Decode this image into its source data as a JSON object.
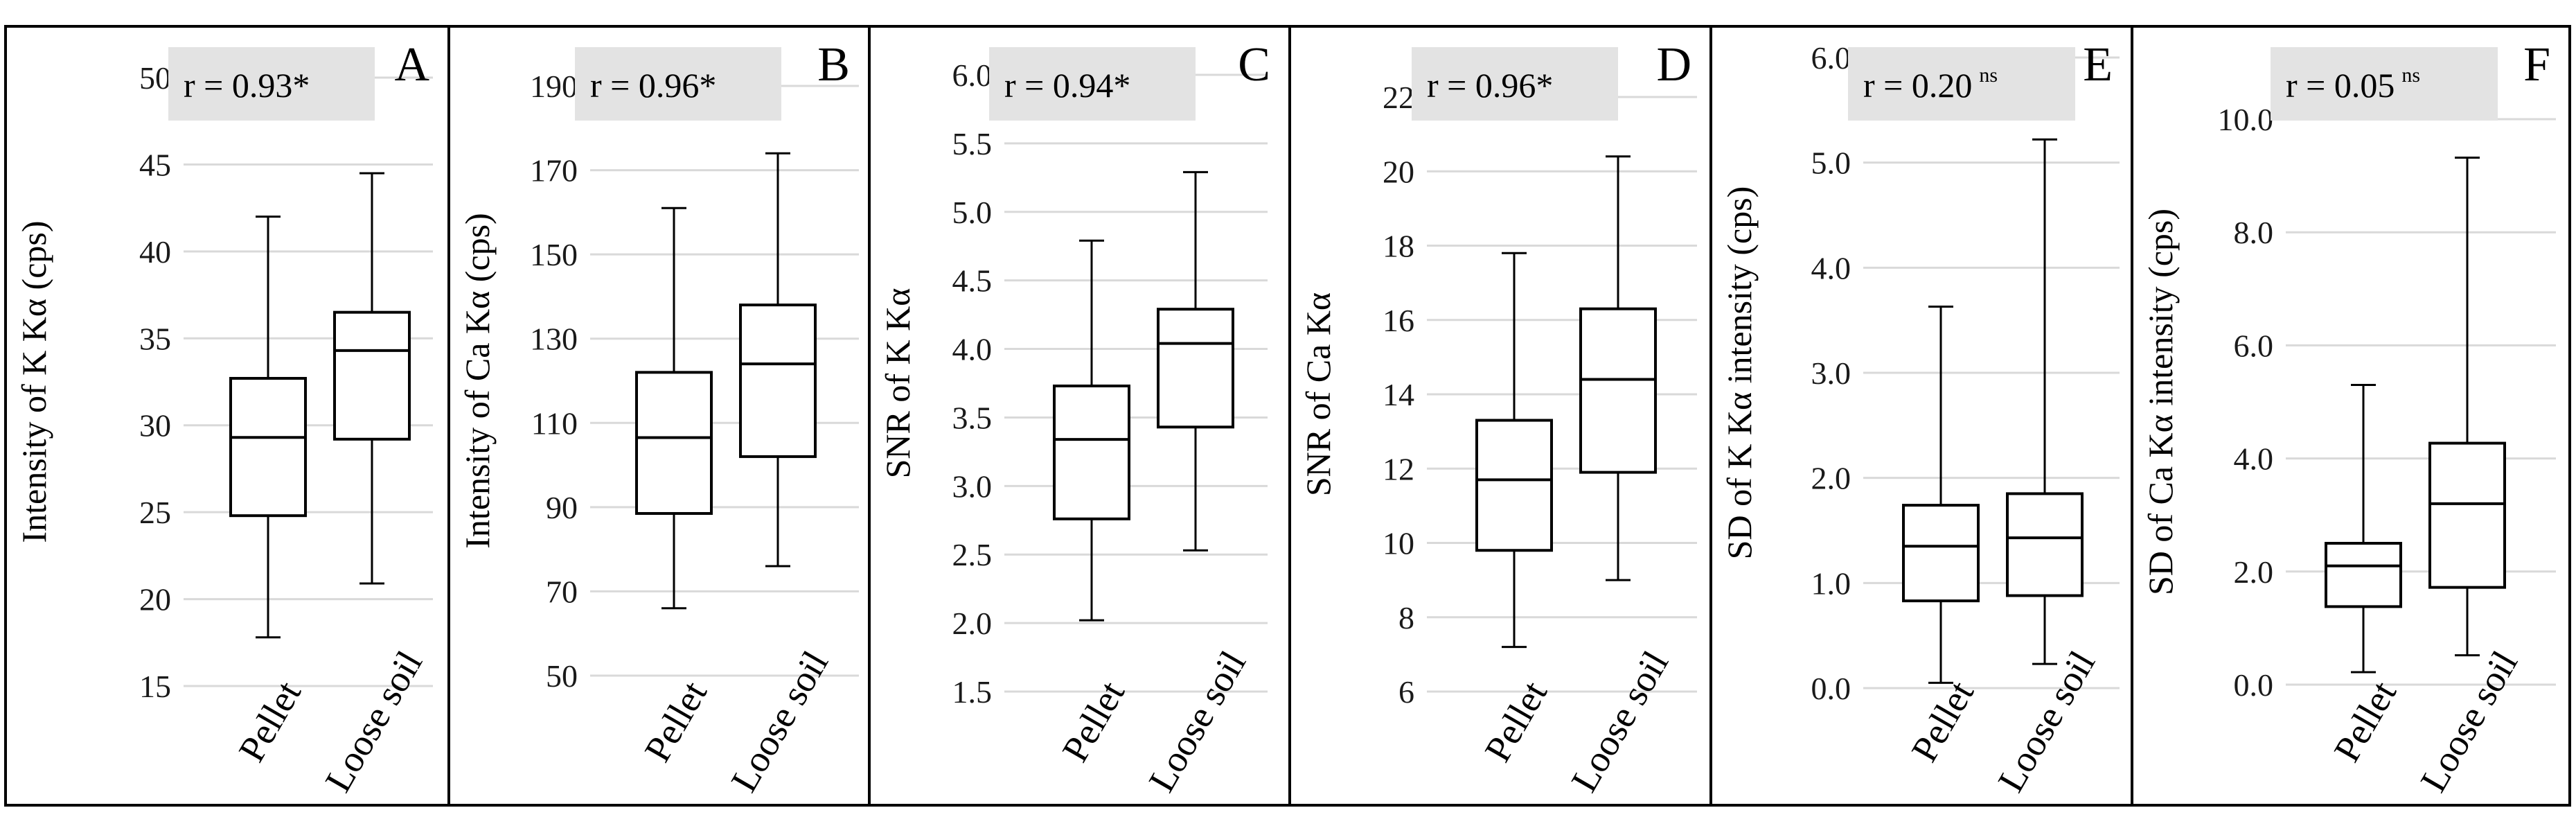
{
  "chart_data": [
    {
      "type": "boxplot",
      "panel_label": "A",
      "stat_label": "r = 0.93*",
      "ylabel": "Intensity of K Kα (cps)",
      "ylim": [
        15,
        50
      ],
      "yticks": [
        15,
        20,
        25,
        30,
        35,
        40,
        45,
        50
      ],
      "ytick_labels": [
        "15",
        "20",
        "25",
        "30",
        "35",
        "40",
        "45",
        "50"
      ],
      "categories": [
        "Pellet",
        "Loose soil"
      ],
      "boxes": [
        {
          "min": 17.8,
          "q1": 24.8,
          "median": 29.3,
          "q3": 32.7,
          "max": 42.0
        },
        {
          "min": 20.9,
          "q1": 29.2,
          "median": 34.3,
          "q3": 36.5,
          "max": 44.5
        }
      ]
    },
    {
      "type": "boxplot",
      "panel_label": "B",
      "stat_label": "r = 0.96*",
      "ylabel": "Intensity of Ca Kα (cps)",
      "ylim": [
        50,
        190
      ],
      "yticks": [
        50,
        70,
        90,
        110,
        130,
        150,
        170,
        190
      ],
      "ytick_labels": [
        "50",
        "70",
        "90",
        "110",
        "130",
        "150",
        "170",
        "190"
      ],
      "categories": [
        "Pellet",
        "Loose soil"
      ],
      "boxes": [
        {
          "min": 66,
          "q1": 88.5,
          "median": 106.5,
          "q3": 122,
          "max": 161
        },
        {
          "min": 76,
          "q1": 102,
          "median": 124,
          "q3": 138,
          "max": 174
        }
      ]
    },
    {
      "type": "boxplot",
      "panel_label": "C",
      "stat_label": "r = 0.94*",
      "ylabel": "SNR of K Kα",
      "ylim": [
        1.5,
        6.0
      ],
      "yticks": [
        1.5,
        2.0,
        2.5,
        3.0,
        3.5,
        4.0,
        4.5,
        5.0,
        5.5,
        6.0
      ],
      "ytick_labels": [
        "1.5",
        "2.0",
        "2.5",
        "3.0",
        "3.5",
        "4.0",
        "4.5",
        "5.0",
        "5.5",
        "6.0"
      ],
      "categories": [
        "Pellet",
        "Loose soil"
      ],
      "boxes": [
        {
          "min": 2.02,
          "q1": 2.76,
          "median": 3.34,
          "q3": 3.73,
          "max": 4.79
        },
        {
          "min": 2.53,
          "q1": 3.43,
          "median": 4.04,
          "q3": 4.29,
          "max": 5.29
        }
      ]
    },
    {
      "type": "boxplot",
      "panel_label": "D",
      "stat_label": "r = 0.96*",
      "ylabel": "SNR of Ca Kα",
      "ylim": [
        6,
        22
      ],
      "yticks": [
        6,
        8,
        10,
        12,
        14,
        16,
        18,
        20,
        22
      ],
      "ytick_labels": [
        "6",
        "8",
        "10",
        "12",
        "14",
        "16",
        "18",
        "20",
        "22"
      ],
      "categories": [
        "Pellet",
        "Loose soil"
      ],
      "boxes": [
        {
          "min": 7.2,
          "q1": 9.8,
          "median": 11.7,
          "q3": 13.3,
          "max": 17.8
        },
        {
          "min": 9.0,
          "q1": 11.9,
          "median": 14.4,
          "q3": 16.3,
          "max": 20.4
        }
      ]
    },
    {
      "type": "boxplot",
      "panel_label": "E",
      "stat_label": "r = 0.20",
      "stat_superscript": "ns",
      "ylabel": "SD of K Kα intensity (cps)",
      "ylim": [
        0,
        6
      ],
      "yticks": [
        0,
        1,
        2,
        3,
        4,
        5,
        6
      ],
      "ytick_labels": [
        "0.0",
        "1.0",
        "2.0",
        "3.0",
        "4.0",
        "5.0",
        "6.0"
      ],
      "categories": [
        "Pellet",
        "Loose soil"
      ],
      "boxes": [
        {
          "min": 0.05,
          "q1": 0.83,
          "median": 1.35,
          "q3": 1.74,
          "max": 3.63
        },
        {
          "min": 0.23,
          "q1": 0.88,
          "median": 1.43,
          "q3": 1.85,
          "max": 5.22
        }
      ]
    },
    {
      "type": "boxplot",
      "panel_label": "F",
      "stat_label": "r = 0.05",
      "stat_superscript": "ns",
      "ylabel": "SD of Ca Kα intensity (cps)",
      "ylim": [
        0,
        10
      ],
      "yticks": [
        0,
        2,
        4,
        6,
        8,
        10
      ],
      "ytick_labels": [
        "0.0",
        "2.0",
        "4.0",
        "6.0",
        "8.0",
        "10.0"
      ],
      "categories": [
        "Pellet",
        "Loose soil"
      ],
      "boxes": [
        {
          "min": 0.22,
          "q1": 1.38,
          "median": 2.1,
          "q3": 2.5,
          "max": 5.3
        },
        {
          "min": 0.52,
          "q1": 1.72,
          "median": 3.2,
          "q3": 4.27,
          "max": 9.32
        }
      ]
    }
  ]
}
